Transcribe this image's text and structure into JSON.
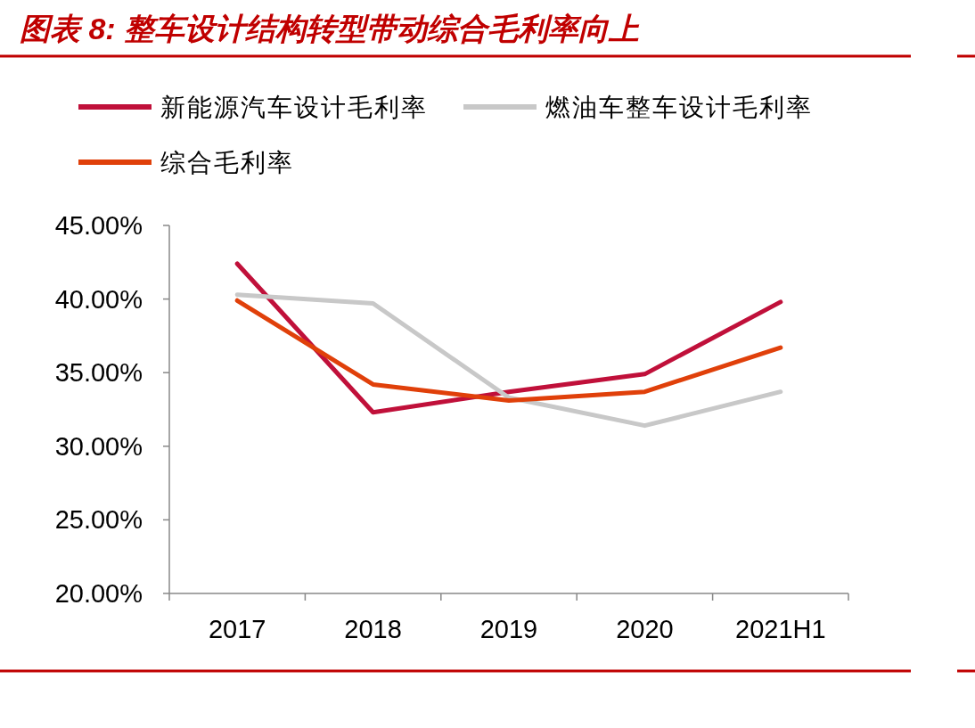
{
  "chart_data": {
    "type": "line",
    "title": "图表 8: 整车设计结构转型带动综合毛利率向上",
    "categories": [
      "2017",
      "2018",
      "2019",
      "2020",
      "2021H1"
    ],
    "series": [
      {
        "name": "新能源汽车设计毛利率",
        "color": "#c0103a",
        "values": [
          42.4,
          32.3,
          33.7,
          34.9,
          39.8
        ]
      },
      {
        "name": "燃油车整车设计毛利率",
        "color": "#c8c8c8",
        "values": [
          40.3,
          39.7,
          33.3,
          31.4,
          33.7
        ]
      },
      {
        "name": "综合毛利率",
        "color": "#e0400a",
        "values": [
          39.9,
          34.2,
          33.1,
          33.7,
          36.7
        ]
      }
    ],
    "ylim": [
      20,
      45
    ],
    "yticks": [
      {
        "value": 20,
        "label": "20.00%"
      },
      {
        "value": 25,
        "label": "25.00%"
      },
      {
        "value": 30,
        "label": "30.00%"
      },
      {
        "value": 35,
        "label": "35.00%"
      },
      {
        "value": 40,
        "label": "40.00%"
      },
      {
        "value": 45,
        "label": "45.00%"
      }
    ],
    "grid": false,
    "legend": "top",
    "marker": "none",
    "line_style": "solid"
  }
}
